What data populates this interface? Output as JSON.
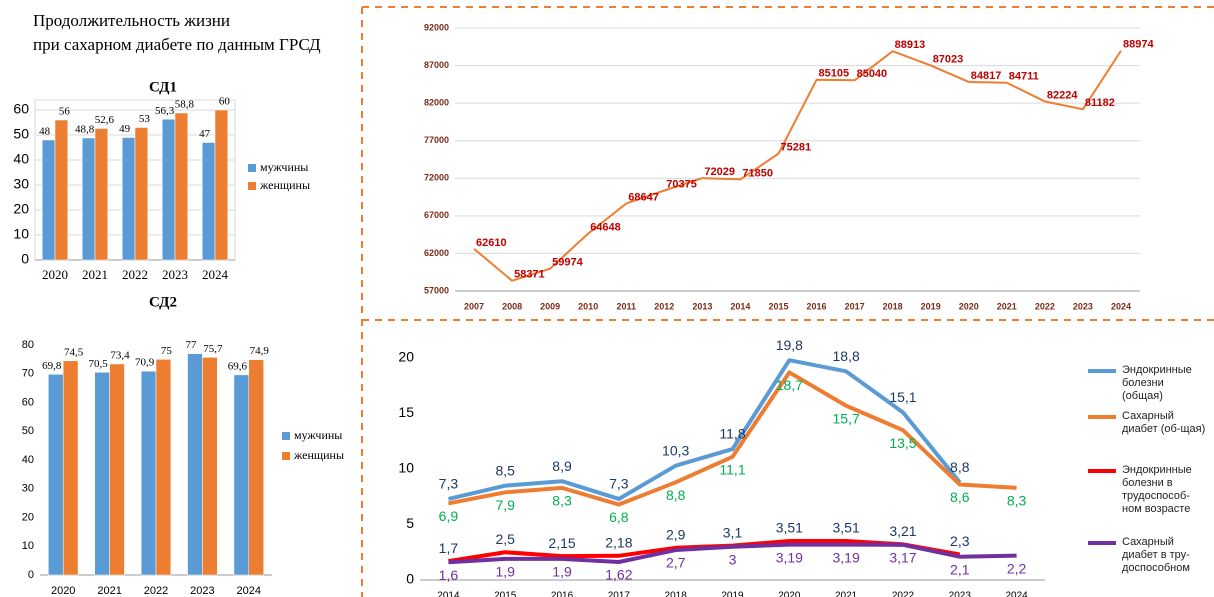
{
  "header": {
    "lines": [
      "Продолжительность жизни",
      "при сахарном диабете  по данным ГРСД"
    ]
  },
  "chart_data": [
    {
      "type": "bar",
      "title": "СД1",
      "categories": [
        "2020",
        "2021",
        "2022",
        "2023",
        "2024"
      ],
      "series": [
        {
          "name": "мужчины",
          "color": "#5b9bd5",
          "values": [
            48,
            48.8,
            49,
            56.3,
            47
          ],
          "value_labels": [
            "48",
            "48,8",
            "49",
            "56,3",
            "47"
          ]
        },
        {
          "name": "женщины",
          "color": "#ed7d31",
          "values": [
            56,
            52.6,
            53,
            58.8,
            60
          ],
          "value_labels": [
            "56",
            "52,6",
            "53",
            "58,8",
            "60"
          ]
        }
      ],
      "ylim": [
        0,
        60
      ],
      "yticks": [
        0,
        10,
        20,
        30,
        40,
        50,
        60
      ],
      "grid": true,
      "legend": "right"
    },
    {
      "type": "bar",
      "title": "СД2",
      "categories": [
        "2020",
        "2021",
        "2022",
        "2023",
        "2024"
      ],
      "series": [
        {
          "name": "мужчины",
          "color": "#5b9bd5",
          "values": [
            69.8,
            70.5,
            70.9,
            77,
            69.6
          ],
          "value_labels": [
            "69,8",
            "70,5",
            "70,9",
            "77",
            "69,6"
          ]
        },
        {
          "name": "женщины",
          "color": "#ed7d31",
          "values": [
            74.5,
            73.4,
            75,
            75.7,
            74.9
          ],
          "value_labels": [
            "74,5",
            "73,4",
            "75",
            "75,7",
            "74,9"
          ]
        }
      ],
      "ylim": [
        0,
        80
      ],
      "yticks": [
        0,
        10,
        20,
        30,
        40,
        50,
        60,
        70,
        80
      ],
      "grid": false,
      "legend": "right"
    },
    {
      "type": "line",
      "categories": [
        "2007",
        "2008",
        "2009",
        "2010",
        "2011",
        "2012",
        "2013",
        "2014",
        "2015",
        "2016",
        "2017",
        "2018",
        "2019",
        "2020",
        "2021",
        "2022",
        "2023",
        "2024"
      ],
      "values": [
        62610,
        58371,
        59974,
        64648,
        68647,
        70375,
        72029,
        71850,
        75281,
        85105,
        85040,
        88913,
        87023,
        84817,
        84711,
        82224,
        81182,
        88974
      ],
      "color": "#ed7d31",
      "label_color": "#c00000",
      "ylim": [
        57000,
        92000
      ],
      "yticks": [
        57000,
        62000,
        67000,
        72000,
        77000,
        82000,
        87000,
        92000
      ],
      "grid": true
    },
    {
      "type": "line",
      "categories": [
        "2014",
        "2015",
        "2016",
        "2017",
        "2018",
        "2019",
        "2020",
        "2021",
        "2022",
        "2023",
        "2024"
      ],
      "series": [
        {
          "name": "Эндокринные болезни (общая)",
          "color": "#5b9bd5",
          "label_color": "#1f3864",
          "values": [
            7.3,
            8.5,
            8.9,
            7.3,
            10.3,
            11.8,
            19.8,
            18.8,
            15.1,
            8.8,
            null
          ],
          "value_labels": [
            "7,3",
            "8,5",
            "8,9",
            "7,3",
            "10,3",
            "11,8",
            "19,8",
            "18,8",
            "15,1",
            "8,8",
            null
          ]
        },
        {
          "name": "Сахарный диабет (об-щая)",
          "color": "#ed7d31",
          "label_color": "#00b050",
          "values": [
            6.9,
            7.9,
            8.3,
            6.8,
            8.8,
            11.1,
            18.7,
            15.7,
            13.5,
            8.6,
            8.3
          ],
          "value_labels": [
            "6,9",
            "7,9",
            "8,3",
            "6,8",
            "8,8",
            "11,1",
            "18,7",
            "15,7",
            "13,5",
            "8,6",
            "8,3"
          ]
        },
        {
          "name": "Эндокринные болезни в трудоспособ-ном возрасте",
          "color": "#ff0000",
          "label_color": "#1f3864",
          "values": [
            1.7,
            2.5,
            2.15,
            2.18,
            2.9,
            3.1,
            3.51,
            3.51,
            3.21,
            2.3,
            null
          ],
          "value_labels": [
            "1,7",
            "2,5",
            "2,15",
            "2,18",
            "2,9",
            "3,1",
            "3,51",
            "3,51",
            "3,21",
            "2,3",
            null
          ]
        },
        {
          "name": "Сахарный диабет в тру-доспособном",
          "color": "#7030a0",
          "label_color": "#7030a0",
          "values": [
            1.6,
            1.9,
            1.9,
            1.62,
            2.7,
            3,
            3.19,
            3.19,
            3.17,
            2.1,
            2.2
          ],
          "value_labels": [
            "1,6",
            "1,9",
            "1,9",
            "1,62",
            "2,7",
            "3",
            "3,19",
            "3,19",
            "3,17",
            "2,1",
            "2,2"
          ]
        }
      ],
      "ylim": [
        0,
        20
      ],
      "yticks": [
        0,
        5,
        10,
        15,
        20
      ],
      "grid": false,
      "legend": "right"
    }
  ]
}
